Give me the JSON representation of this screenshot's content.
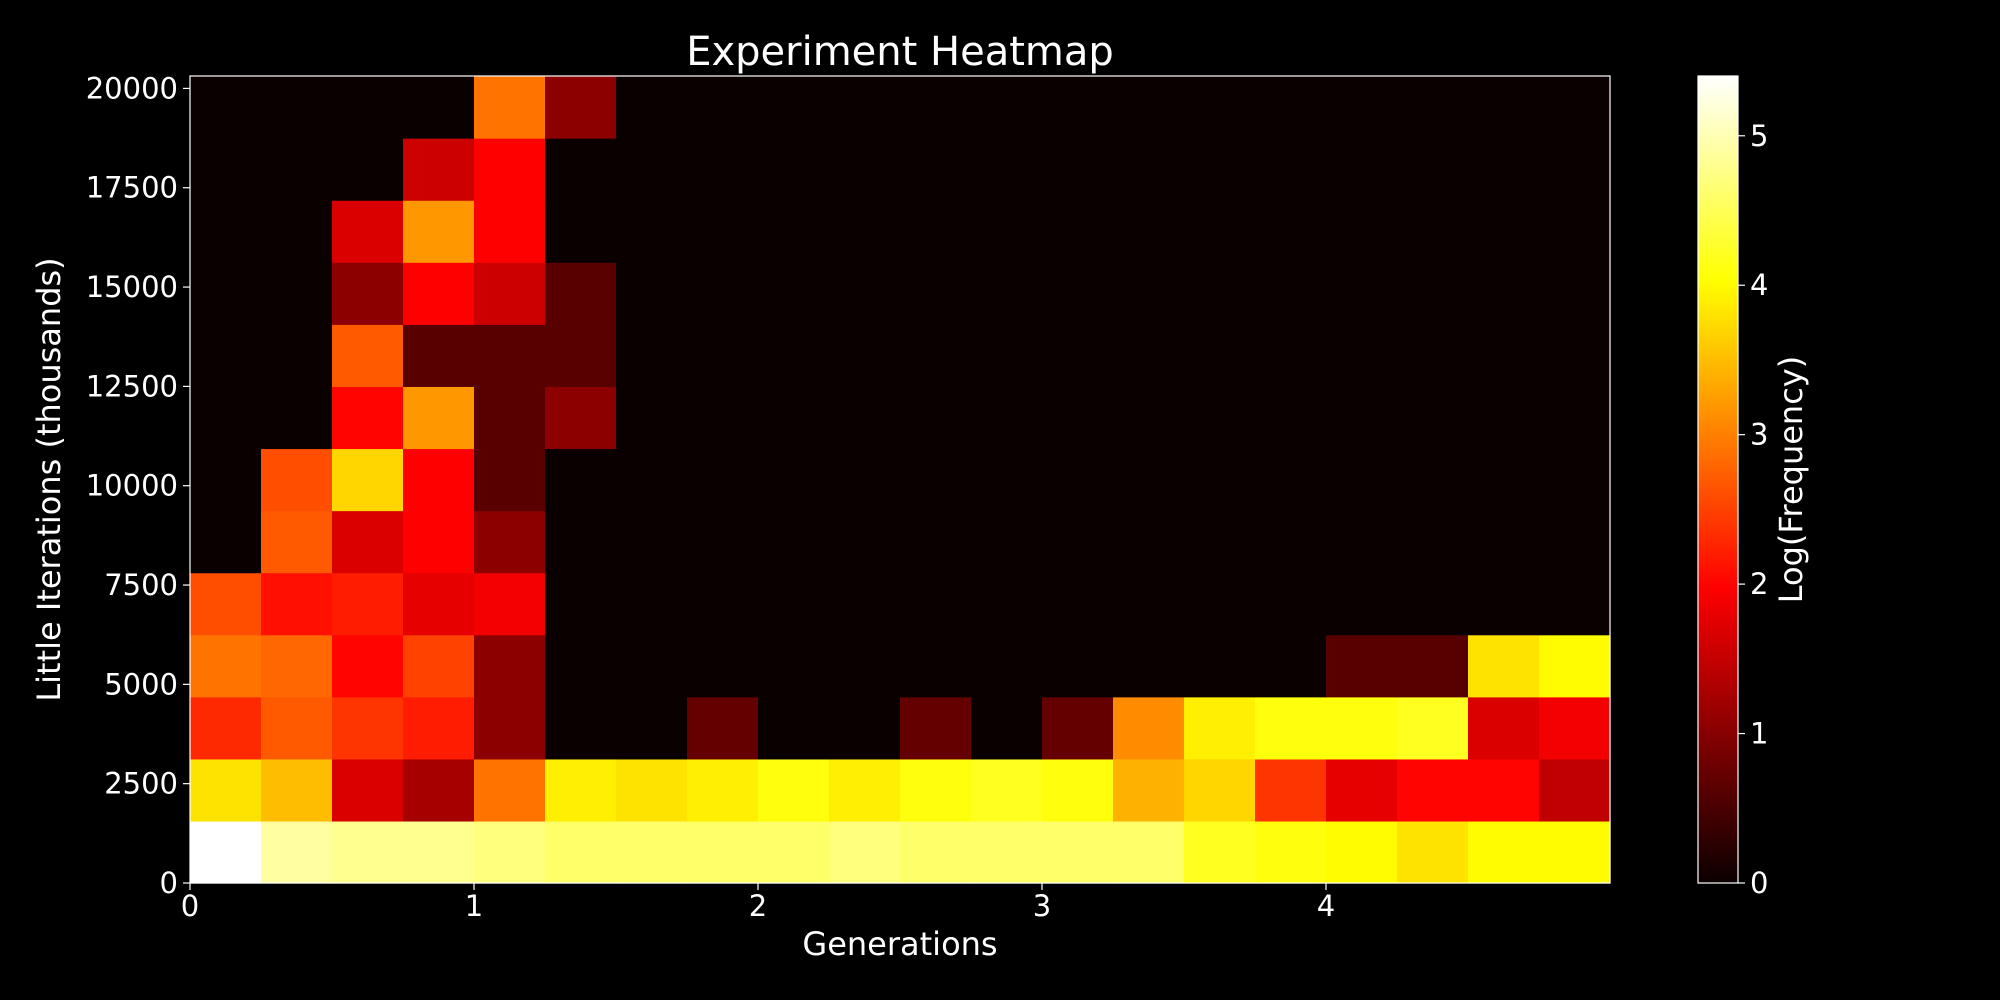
{
  "chart_data": {
    "type": "heatmap",
    "title": "Experiment Heatmap",
    "xlabel": "Generations",
    "ylabel": "Little Iterations (thousands)",
    "colorbar_label": "Log(Frequency)",
    "colormap": "hot",
    "xlim": [
      0,
      5
    ],
    "ylim": [
      0,
      20312.5
    ],
    "clim": [
      0,
      5.4
    ],
    "x_ticks": [
      0,
      1,
      2,
      3,
      4
    ],
    "y_ticks": [
      0,
      2500,
      5000,
      7500,
      10000,
      12500,
      15000,
      17500,
      20000
    ],
    "colorbar_ticks": [
      0,
      1,
      2,
      3,
      4,
      5
    ],
    "x_bin_edges": [
      0,
      0.25,
      0.5,
      0.75,
      1.0,
      1.25,
      1.5,
      1.75,
      2.0,
      2.25,
      2.5,
      2.75,
      3.0,
      3.25,
      3.5,
      3.75,
      4.0,
      4.25,
      4.5,
      4.75,
      5.0
    ],
    "y_bin_edges": [
      0,
      1562.5,
      3125,
      4687.5,
      6250,
      7812.5,
      9375,
      10937.5,
      12500,
      14062.5,
      15625,
      17187.5,
      18750,
      20312.5
    ],
    "values": [
      [
        5.4,
        4.9,
        4.8,
        4.8,
        4.7,
        4.6,
        4.6,
        4.6,
        4.6,
        4.7,
        4.6,
        4.6,
        4.6,
        4.6,
        4.2,
        4.1,
        4.0,
        3.8,
        4.0,
        4.0
      ],
      [
        3.8,
        3.5,
        1.6,
        1.2,
        2.9,
        3.9,
        3.8,
        3.9,
        4.1,
        3.9,
        4.1,
        4.2,
        4.1,
        3.4,
        3.7,
        2.4,
        1.7,
        2.0,
        2.0,
        1.4
      ],
      [
        2.3,
        2.7,
        2.4,
        2.2,
        1.0,
        0.0,
        0.0,
        0.7,
        0.0,
        0.0,
        0.7,
        0.0,
        0.7,
        3.1,
        3.9,
        4.1,
        4.1,
        4.2,
        1.6,
        1.8
      ],
      [
        2.9,
        2.8,
        2.0,
        2.5,
        1.0,
        0.0,
        0.0,
        0.0,
        0.0,
        0.0,
        0.0,
        0.0,
        0.0,
        0.0,
        0.0,
        0.0,
        0.6,
        0.6,
        3.8,
        4.0
      ],
      [
        2.6,
        2.1,
        2.2,
        1.7,
        1.8,
        0.0,
        0.0,
        0.0,
        0.0,
        0.0,
        0.0,
        0.0,
        0.0,
        0.0,
        0.0,
        0.0,
        0.0,
        0.0,
        0.0,
        0.0
      ],
      [
        0.0,
        2.7,
        1.6,
        1.9,
        1.0,
        0.0,
        0.0,
        0.0,
        0.0,
        0.0,
        0.0,
        0.0,
        0.0,
        0.0,
        0.0,
        0.0,
        0.0,
        0.0,
        0.0,
        0.0
      ],
      [
        0.0,
        2.6,
        3.7,
        1.9,
        0.6,
        0.0,
        0.0,
        0.0,
        0.0,
        0.0,
        0.0,
        0.0,
        0.0,
        0.0,
        0.0,
        0.0,
        0.0,
        0.0,
        0.0,
        0.0
      ],
      [
        0.0,
        0.0,
        2.0,
        3.2,
        0.6,
        1.0,
        0.0,
        0.0,
        0.0,
        0.0,
        0.0,
        0.0,
        0.0,
        0.0,
        0.0,
        0.0,
        0.0,
        0.0,
        0.0,
        0.0
      ],
      [
        0.0,
        0.0,
        2.7,
        0.6,
        0.6,
        0.6,
        0.0,
        0.0,
        0.0,
        0.0,
        0.0,
        0.0,
        0.0,
        0.0,
        0.0,
        0.0,
        0.0,
        0.0,
        0.0,
        0.0
      ],
      [
        0.0,
        0.0,
        1.0,
        1.9,
        1.5,
        0.6,
        0.0,
        0.0,
        0.0,
        0.0,
        0.0,
        0.0,
        0.0,
        0.0,
        0.0,
        0.0,
        0.0,
        0.0,
        0.0,
        0.0
      ],
      [
        0.0,
        0.0,
        1.6,
        3.2,
        1.9,
        0.0,
        0.0,
        0.0,
        0.0,
        0.0,
        0.0,
        0.0,
        0.0,
        0.0,
        0.0,
        0.0,
        0.0,
        0.0,
        0.0,
        0.0
      ],
      [
        0.0,
        0.0,
        0.0,
        1.5,
        1.9,
        0.0,
        0.0,
        0.0,
        0.0,
        0.0,
        0.0,
        0.0,
        0.0,
        0.0,
        0.0,
        0.0,
        0.0,
        0.0,
        0.0,
        0.0
      ],
      [
        0.0,
        0.0,
        0.0,
        0.0,
        2.9,
        1.0,
        0.0,
        0.0,
        0.0,
        0.0,
        0.0,
        0.0,
        0.0,
        0.0,
        0.0,
        0.0,
        0.0,
        0.0,
        0.0,
        0.0
      ]
    ],
    "grid": false,
    "colors": {
      "background": "#000000",
      "text": "#ffffff",
      "frame": "#ffffff"
    }
  }
}
